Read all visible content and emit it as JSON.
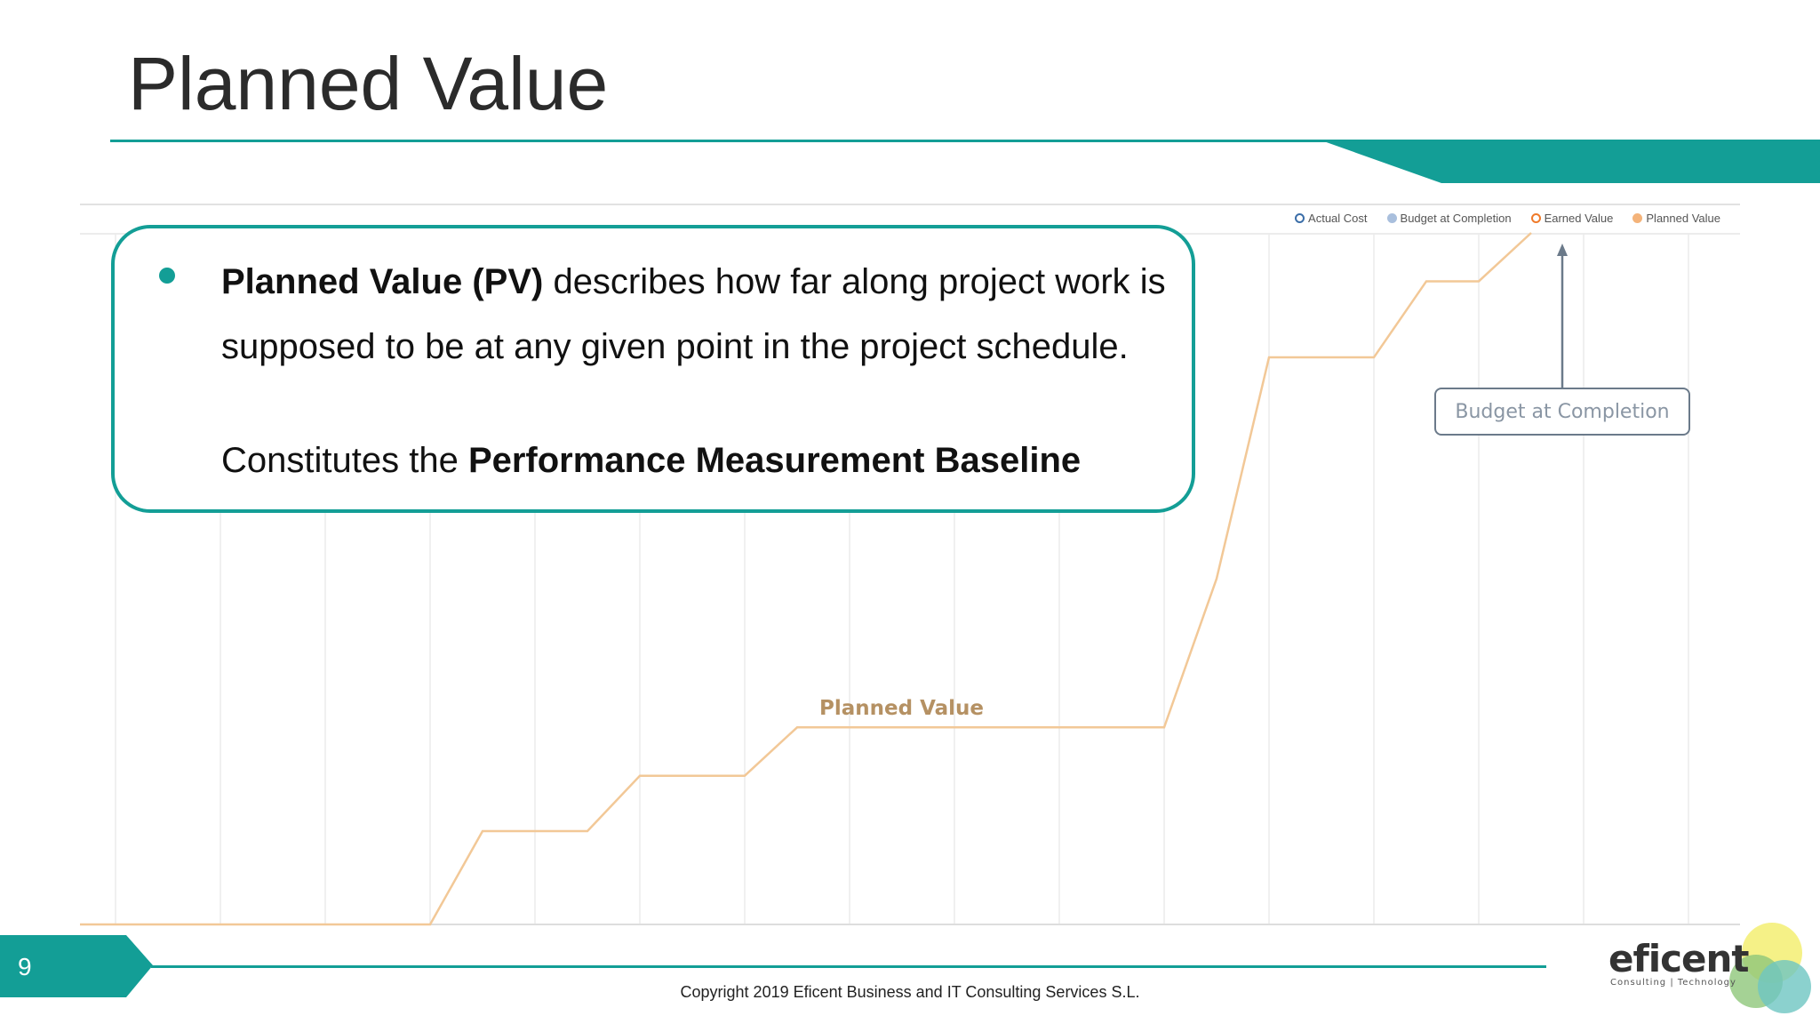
{
  "slide": {
    "title": "Planned Value",
    "page_number": "9",
    "copyright": "Copyright 2019 Eficent Business and IT Consulting Services S.L."
  },
  "info_box": {
    "bullet_bold": "Planned Value (PV)",
    "bullet_text": " describes how far along project work is supposed to be at any given point in the project schedule.",
    "baseline_prefix": "Constitutes the ",
    "baseline_bold": "Performance Measurement Baseline"
  },
  "annotations": {
    "budget_at_completion": "Budget at Completion",
    "planned_value": "Planned Value"
  },
  "legend": [
    {
      "label": "Actual Cost",
      "color": "#3b6ea8",
      "style": "ring"
    },
    {
      "label": "Budget at Completion",
      "color": "#a9bfdd",
      "style": "filled"
    },
    {
      "label": "Earned Value",
      "color": "#ef7a2a",
      "style": "ring"
    },
    {
      "label": "Planned Value",
      "color": "#f4b37a",
      "style": "filled"
    }
  ],
  "logo": {
    "name": "eficent",
    "tagline": "Consulting | Technology"
  },
  "colors": {
    "accent": "#139e96",
    "planned_value_line": "#f2c897",
    "grid": "#ececec"
  },
  "chart_data": {
    "type": "line",
    "title": "",
    "xlabel": "",
    "ylabel": "",
    "grid": true,
    "legend_position": "top-right",
    "x_range": [
      0,
      15.5
    ],
    "y_range": [
      0,
      100
    ],
    "series": [
      {
        "name": "Planned Value",
        "x": [
          0,
          3,
          3.5,
          4.5,
          5,
          6,
          6.5,
          10,
          10.5,
          11,
          12,
          12.5,
          13,
          13.5
        ],
        "y": [
          0,
          0,
          13.5,
          13.5,
          21.5,
          21.5,
          28.5,
          28.5,
          50,
          82,
          82,
          93,
          93,
          100
        ]
      }
    ]
  }
}
